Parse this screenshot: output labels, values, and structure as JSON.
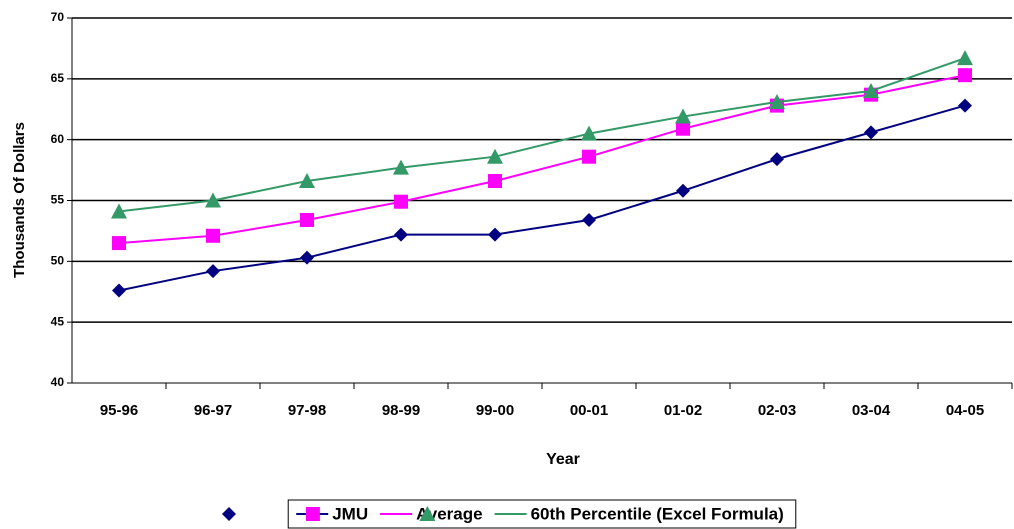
{
  "chart_data": {
    "type": "line",
    "x_label": "Year",
    "y_label": "Thousands Of Dollars",
    "categories": [
      "95-96",
      "96-97",
      "97-98",
      "98-99",
      "99-00",
      "00-01",
      "01-02",
      "02-03",
      "03-04",
      "04-05"
    ],
    "series": [
      {
        "name": "JMU",
        "color": "#000080",
        "marker": "diamond",
        "values": [
          47.6,
          49.2,
          50.3,
          52.2,
          52.2,
          53.4,
          55.8,
          58.4,
          60.6,
          62.8
        ]
      },
      {
        "name": "Average",
        "color": "#ff00ff",
        "marker": "square",
        "values": [
          51.5,
          52.1,
          53.4,
          54.9,
          56.6,
          58.6,
          60.9,
          62.8,
          63.7,
          65.3
        ]
      },
      {
        "name": "60th Percentile (Excel Formula)",
        "color": "#339966",
        "marker": "triangle",
        "values": [
          54.1,
          55.0,
          56.6,
          57.7,
          58.6,
          60.5,
          61.9,
          63.1,
          64.0,
          66.7
        ]
      }
    ],
    "ylim": [
      40,
      70
    ],
    "yticks": [
      40,
      45,
      50,
      55,
      60,
      65,
      70
    ],
    "grid": true,
    "legend": "bottom"
  }
}
